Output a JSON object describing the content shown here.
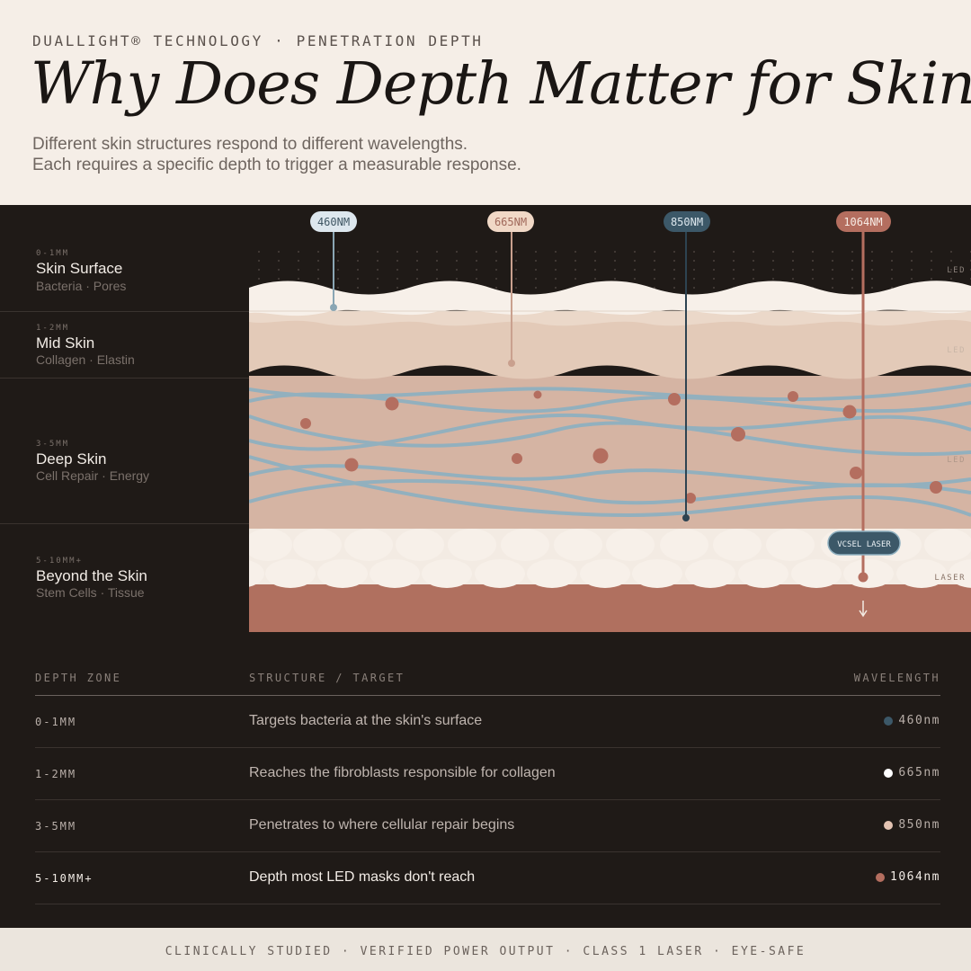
{
  "header": {
    "eyebrow": "DUALLIGHT® TECHNOLOGY · PENETRATION DEPTH",
    "title": "Why Does Depth Matter for Skin?",
    "subtitle_line1": "Different skin structures respond to different wavelengths.",
    "subtitle_line2": "Each requires a specific depth to trigger a measurable response."
  },
  "zones": [
    {
      "depth": "0-1MM",
      "name": "Skin Surface",
      "sub": "Bacteria · Pores",
      "source": "LED"
    },
    {
      "depth": "1-2MM",
      "name": "Mid Skin",
      "sub": "Collagen · Elastin",
      "source": "LED"
    },
    {
      "depth": "3-5MM",
      "name": "Deep Skin",
      "sub": "Cell Repair · Energy",
      "source": "LED"
    },
    {
      "depth": "5-10MM+",
      "name": "Beyond the Skin",
      "sub": "Stem Cells · Tissue",
      "source": "LASER"
    }
  ],
  "wavelengths": [
    {
      "label": "460NM",
      "color": "#dde7ee",
      "text_color": "#3f5663",
      "line_color": "#8aa6b4"
    },
    {
      "label": "665NM",
      "color": "#f0d8c6",
      "text_color": "#a0685a",
      "line_color": "#c9a08e"
    },
    {
      "label": "850NM",
      "color": "#3c5868",
      "text_color": "#dde7ee",
      "line_color": "#2d4351"
    },
    {
      "label": "1064NM",
      "color": "#b46e5f",
      "text_color": "#f7ebe4",
      "line_color": "#b46e5f"
    }
  ],
  "laser_badge": "VCSEL LASER",
  "table": {
    "headers": {
      "zone": "DEPTH ZONE",
      "target": "STRUCTURE / TARGET",
      "wavelength": "WAVELENGTH"
    },
    "rows": [
      {
        "zone": "0-1MM",
        "target": "Targets bacteria at the skin's surface",
        "wavelength": "460nm",
        "dot": "#3c5868"
      },
      {
        "zone": "1-2MM",
        "target": "Reaches the fibroblasts responsible for collagen",
        "wavelength": "665nm",
        "dot": "#ffffff"
      },
      {
        "zone": "3-5MM",
        "target": "Penetrates to where cellular repair begins",
        "wavelength": "850nm",
        "dot": "#e3c3b2"
      },
      {
        "zone": "5-10MM+",
        "target": "Depth most LED masks don't reach",
        "wavelength": "1064nm",
        "dot": "#b46e5f"
      }
    ]
  },
  "footer": "CLINICALLY STUDIED · VERIFIED POWER OUTPUT · CLASS 1 LASER · EYE-SAFE"
}
